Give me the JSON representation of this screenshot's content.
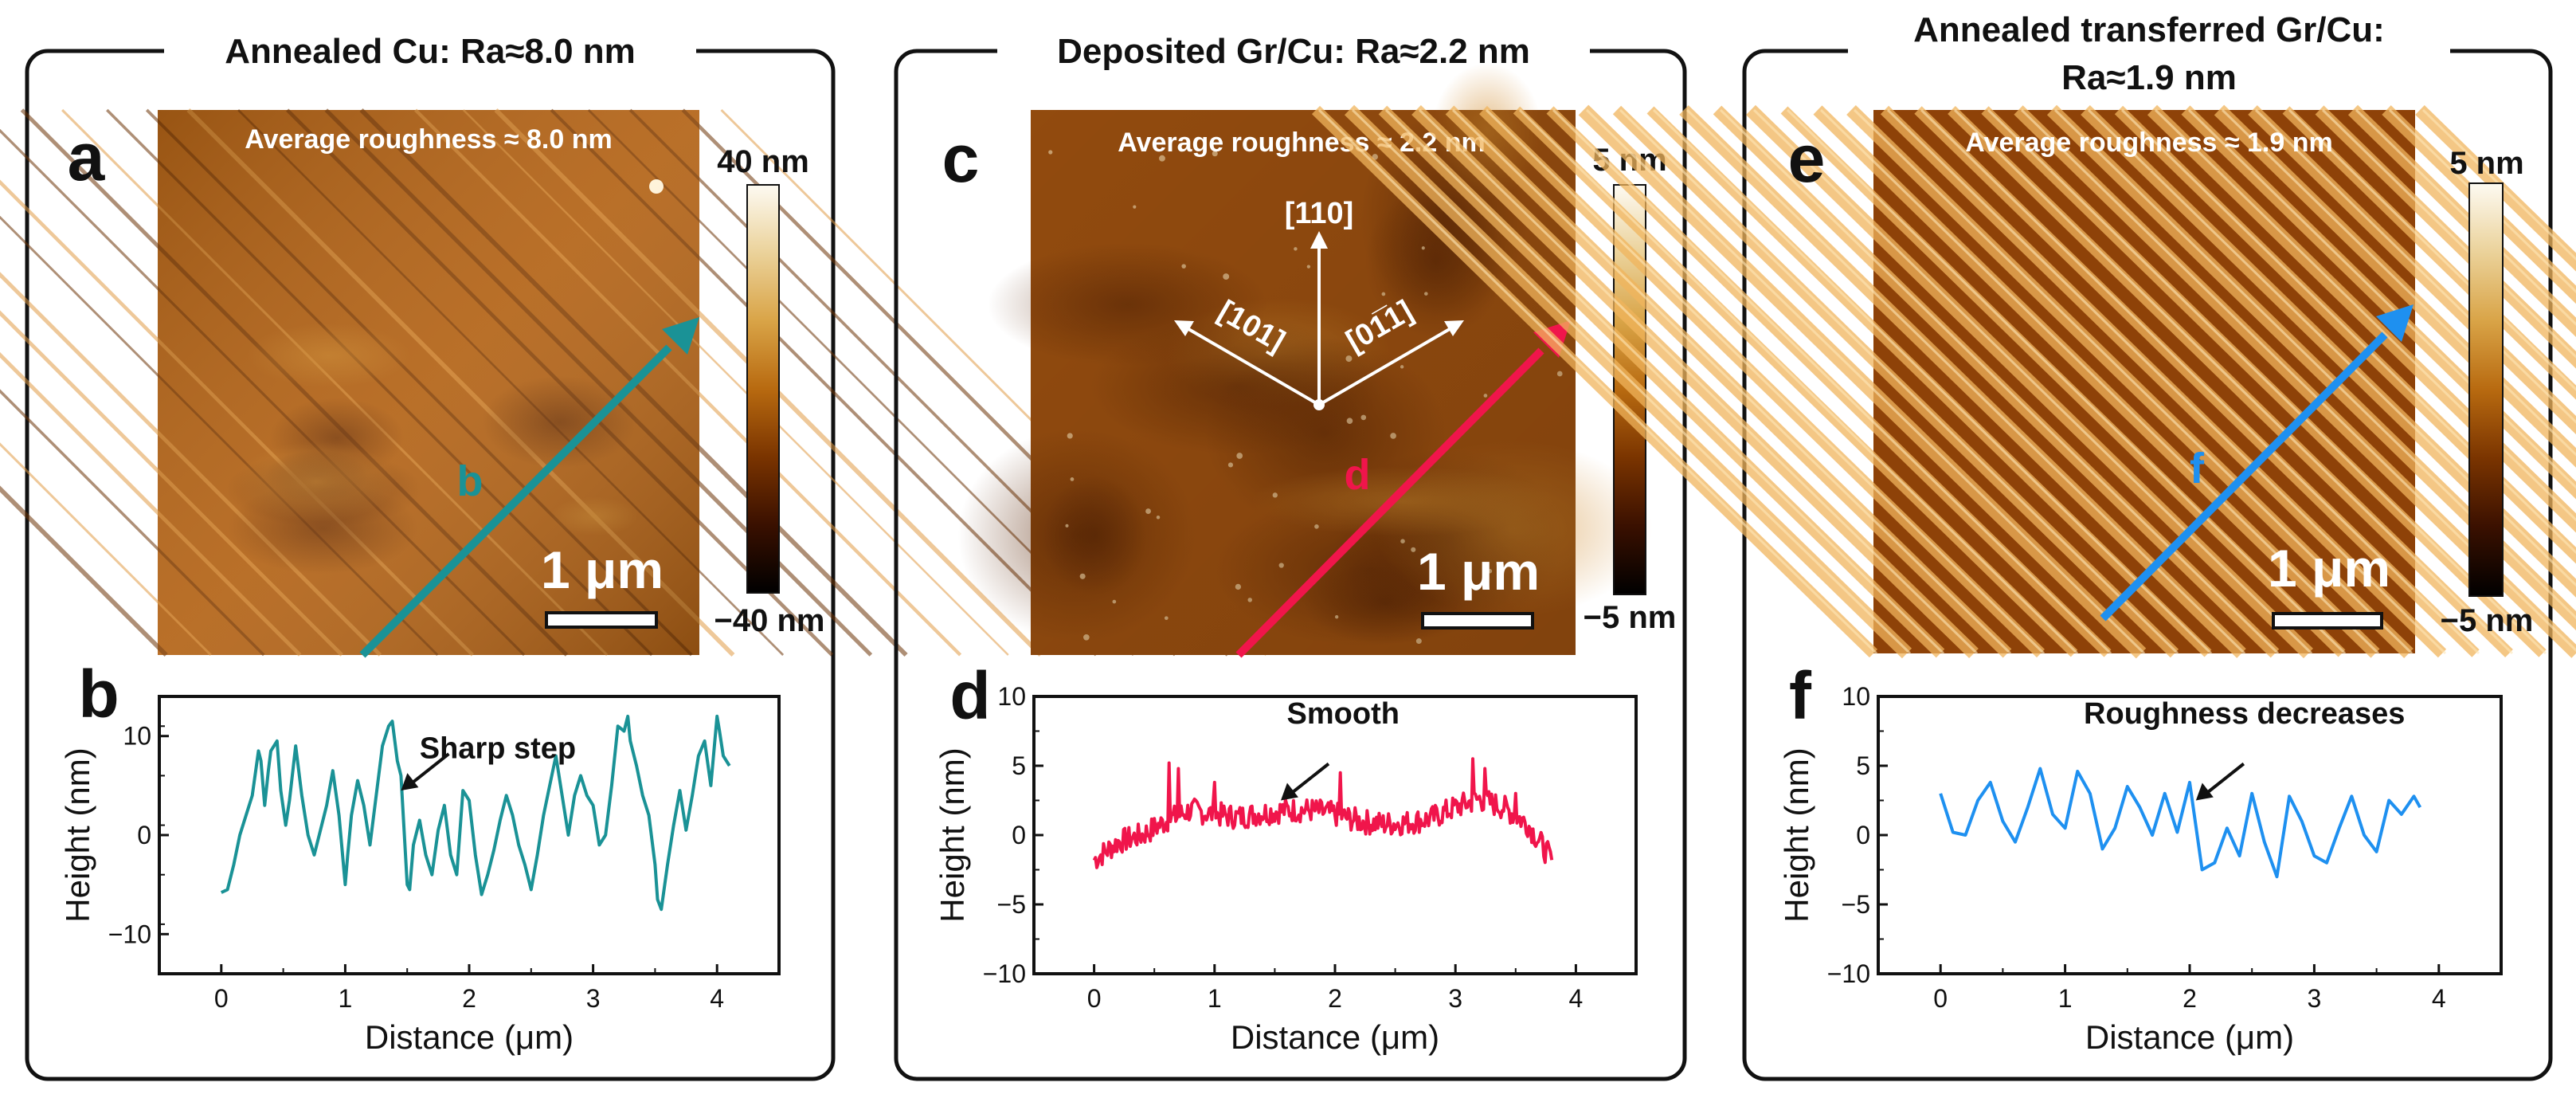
{
  "colors": {
    "teal": "#1a9296",
    "red": "#f0154b",
    "blue": "#1e90f0",
    "frame": "#111111"
  },
  "colorbar_gradient": [
    "#000000",
    "#3a1000",
    "#7a3400",
    "#b86a10",
    "#d9a447",
    "#ebd29a",
    "#fdfaf2"
  ],
  "panels": [
    {
      "title_lines": [
        "Annealed Cu: Ra≈8.0 nm"
      ],
      "afm": {
        "letter": "a",
        "roughness_text": "Average roughness ≈ 8.0 nm",
        "scalebar_label": "1 μm",
        "colorbar_top": "40 nm",
        "colorbar_bottom": "−40 nm",
        "arrow_label": "b",
        "texture": "steps",
        "base_color": "#b36316"
      },
      "crystal_axes": null,
      "chart_data": {
        "type": "line",
        "letter": "b",
        "annotation": "Sharp step",
        "annotation_point": [
          1.45,
          4.5
        ],
        "annotation_text_pos": [
          1.6,
          10.5
        ],
        "xlabel": "Distance (μm)",
        "ylabel": "Height (nm)",
        "xlim": [
          -0.5,
          4.5
        ],
        "ylim": [
          -14,
          14
        ],
        "xticks": [
          0,
          1,
          2,
          3,
          4
        ],
        "yticks": [
          10,
          0,
          -10
        ],
        "yticklabels": [
          "10",
          "0",
          "−10"
        ],
        "series": [
          {
            "name": "b",
            "x": [
              0.0,
              0.05,
              0.1,
              0.15,
              0.2,
              0.25,
              0.3,
              0.32,
              0.35,
              0.38,
              0.4,
              0.45,
              0.48,
              0.52,
              0.55,
              0.6,
              0.65,
              0.7,
              0.75,
              0.8,
              0.85,
              0.9,
              0.95,
              1.0,
              1.02,
              1.05,
              1.1,
              1.15,
              1.2,
              1.25,
              1.3,
              1.35,
              1.38,
              1.42,
              1.45,
              1.5,
              1.52,
              1.55,
              1.6,
              1.65,
              1.7,
              1.75,
              1.8,
              1.85,
              1.9,
              1.95,
              2.0,
              2.05,
              2.1,
              2.15,
              2.2,
              2.25,
              2.3,
              2.35,
              2.4,
              2.45,
              2.5,
              2.55,
              2.6,
              2.65,
              2.7,
              2.75,
              2.8,
              2.85,
              2.9,
              2.95,
              3.0,
              3.05,
              3.1,
              3.15,
              3.2,
              3.25,
              3.28,
              3.3,
              3.35,
              3.4,
              3.45,
              3.5,
              3.52,
              3.55,
              3.6,
              3.65,
              3.7,
              3.75,
              3.8,
              3.85,
              3.9,
              3.95,
              4.0,
              4.02,
              4.05,
              4.1
            ],
            "values": [
              -5.8,
              -5.5,
              -3.0,
              0.0,
              2.0,
              4.0,
              8.5,
              7.5,
              3.0,
              6.5,
              8.5,
              9.5,
              4.5,
              1.0,
              3.5,
              9.0,
              4.0,
              0.0,
              -2.0,
              0.5,
              3.0,
              6.5,
              2.0,
              -5.0,
              -2.0,
              2.0,
              5.5,
              3.0,
              -1.0,
              4.0,
              9.0,
              11.0,
              11.5,
              7.5,
              6.0,
              -5.0,
              -5.5,
              -1.0,
              1.5,
              -2.0,
              -4.0,
              0.5,
              3.0,
              -2.0,
              -4.0,
              4.5,
              3.5,
              -2.0,
              -6.0,
              -4.0,
              -1.5,
              1.5,
              4.0,
              2.0,
              -1.0,
              -3.0,
              -5.5,
              -2.0,
              2.0,
              5.0,
              8.0,
              4.0,
              0.0,
              4.0,
              6.0,
              4.0,
              3.0,
              -1.0,
              0.0,
              5.0,
              11.0,
              10.5,
              12.0,
              9.5,
              7.0,
              4.0,
              2.0,
              -3.0,
              -6.5,
              -7.5,
              -3.0,
              1.0,
              4.5,
              0.5,
              4.0,
              8.0,
              9.5,
              5.0,
              12.0,
              10.5,
              8.0,
              7.0
            ]
          }
        ]
      }
    },
    {
      "title_lines": [
        "Deposited Gr/Cu: Ra≈2.2 nm"
      ],
      "afm": {
        "letter": "c",
        "roughness_text": "Average roughness ≈ 2.2 nm",
        "scalebar_label": "1 μm",
        "colorbar_top": "5 nm",
        "colorbar_bottom": "−5 nm",
        "arrow_label": "d",
        "texture": "patches",
        "base_color": "#a25310"
      },
      "crystal_axes": {
        "up": "[110]",
        "left": "[101]",
        "right": "[01̅1]"
      },
      "chart_data": {
        "type": "line",
        "letter": "d",
        "annotation": "Smooth",
        "annotation_point": [
          1.55,
          2.5
        ],
        "annotation_text_pos": [
          1.6,
          10.0
        ],
        "xlabel": "Distance (μm)",
        "ylabel": "Height (nm)",
        "xlim": [
          -0.5,
          4.5
        ],
        "ylim": [
          -10,
          10
        ],
        "xticks": [
          0,
          1,
          2,
          3,
          4
        ],
        "yticks": [
          10,
          5,
          0,
          -5,
          -10
        ],
        "yticklabels": [
          "10",
          "5",
          "0",
          "−5",
          "−10"
        ],
        "series": [
          {
            "name": "d",
            "seed": 7,
            "amplitude": 0.9,
            "spikes": [
              [
                0.62,
                5.2
              ],
              [
                0.7,
                4.8
              ],
              [
                1.0,
                3.8
              ],
              [
                2.05,
                4.5
              ],
              [
                3.15,
                5.5
              ],
              [
                3.25,
                4.8
              ],
              [
                3.5,
                3.0
              ]
            ],
            "x": [
              0.0,
              0.2,
              0.4,
              0.6,
              0.8,
              1.0,
              1.2,
              1.4,
              1.6,
              1.8,
              2.0,
              2.2,
              2.4,
              2.6,
              2.8,
              3.0,
              3.2,
              3.4,
              3.6,
              3.8
            ],
            "values": [
              -1.8,
              -0.5,
              0.0,
              1.0,
              1.8,
              1.5,
              1.3,
              1.6,
              1.8,
              1.8,
              1.5,
              1.0,
              0.8,
              0.9,
              1.2,
              2.0,
              2.6,
              2.0,
              0.8,
              -1.8
            ]
          }
        ]
      }
    },
    {
      "title_lines": [
        "Annealed transferred Gr/Cu:",
        "Ra≈1.9 nm"
      ],
      "afm": {
        "letter": "e",
        "roughness_text": "Average roughness ≈ 1.9 nm",
        "scalebar_label": "1 μm",
        "colorbar_top": "5 nm",
        "colorbar_bottom": "−5 nm",
        "arrow_label": "f",
        "texture": "stripes",
        "base_color": "#8e4208"
      },
      "crystal_axes": null,
      "chart_data": {
        "type": "line",
        "letter": "f",
        "annotation": "Roughness decreases",
        "annotation_point": [
          2.05,
          2.5
        ],
        "annotation_text_pos": [
          1.15,
          10.0
        ],
        "xlabel": "Distance (μm)",
        "ylabel": "Height (nm)",
        "xlim": [
          -0.5,
          4.5
        ],
        "ylim": [
          -10,
          10
        ],
        "xticks": [
          0,
          1,
          2,
          3,
          4
        ],
        "yticks": [
          10,
          5,
          0,
          -5,
          -10
        ],
        "yticklabels": [
          "10",
          "5",
          "0",
          "−5",
          "−10"
        ],
        "series": [
          {
            "name": "f",
            "x": [
              0.0,
              0.1,
              0.2,
              0.3,
              0.4,
              0.5,
              0.6,
              0.7,
              0.8,
              0.9,
              1.0,
              1.1,
              1.2,
              1.3,
              1.4,
              1.5,
              1.6,
              1.7,
              1.8,
              1.9,
              2.0,
              2.1,
              2.2,
              2.3,
              2.4,
              2.5,
              2.6,
              2.7,
              2.8,
              2.9,
              3.0,
              3.1,
              3.2,
              3.3,
              3.4,
              3.5,
              3.6,
              3.7,
              3.8,
              3.85
            ],
            "values": [
              3.0,
              0.2,
              0.0,
              2.5,
              3.8,
              1.0,
              -0.5,
              2.0,
              4.8,
              1.5,
              0.5,
              4.6,
              3.0,
              -1.0,
              0.5,
              3.5,
              2.0,
              0.0,
              3.0,
              0.2,
              3.8,
              -2.5,
              -2.0,
              0.5,
              -1.5,
              3.0,
              -0.5,
              -3.0,
              2.8,
              1.0,
              -1.5,
              -2.0,
              0.5,
              2.8,
              0.0,
              -1.2,
              2.5,
              1.5,
              2.8,
              2.0
            ]
          }
        ]
      }
    }
  ]
}
